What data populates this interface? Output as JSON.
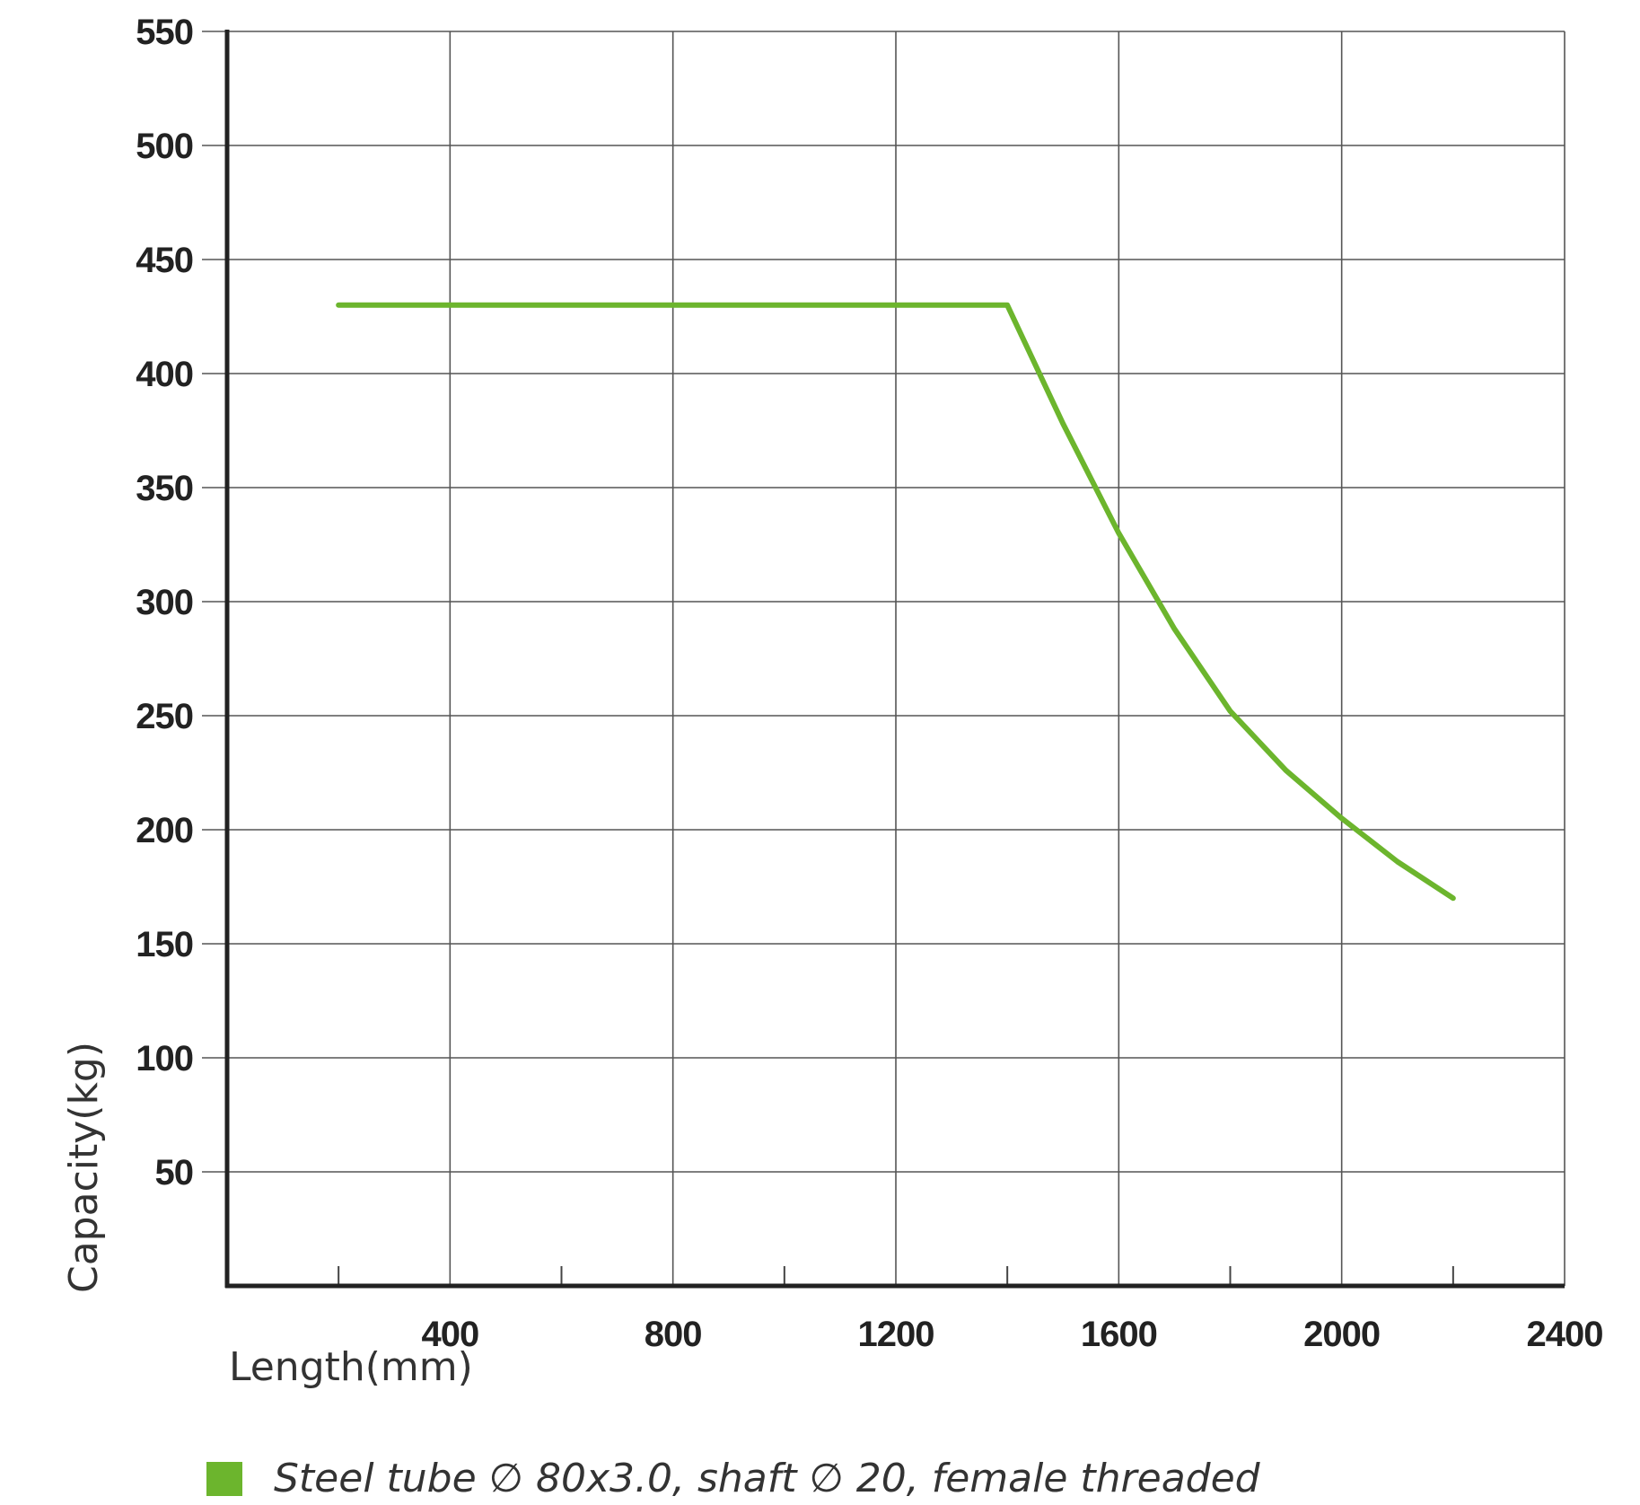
{
  "chart_data": {
    "type": "line",
    "title": "",
    "xlabel": "Length(mm)",
    "ylabel": "Capacity(kg)",
    "xlim": [
      0,
      2400
    ],
    "ylim": [
      0,
      550
    ],
    "x_ticks": [
      400,
      800,
      1200,
      1600,
      2000,
      2400
    ],
    "x_minor_ticks": [
      200,
      600,
      1000,
      1400,
      1800,
      2200
    ],
    "y_ticks": [
      50,
      100,
      150,
      200,
      250,
      300,
      350,
      400,
      450,
      500,
      550
    ],
    "grid": true,
    "legend_position": "bottom",
    "series": [
      {
        "name": "Steel tube ∅ 80x3.0, shaft ∅ 20, female threaded",
        "color": "#6cb52d",
        "x": [
          200,
          1400,
          1500,
          1600,
          1700,
          1800,
          1900,
          2000,
          2100,
          2200
        ],
        "y": [
          430,
          430,
          378,
          330,
          288,
          252,
          226,
          205,
          186,
          170
        ]
      }
    ]
  }
}
